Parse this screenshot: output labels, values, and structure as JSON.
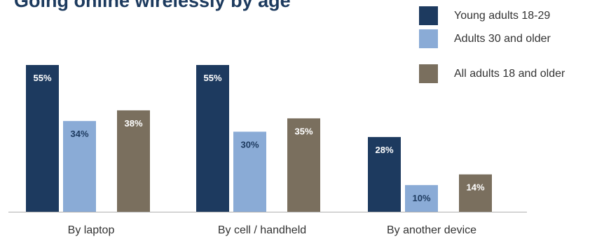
{
  "chart_data": {
    "type": "bar",
    "title": "Going online wirelessly by age",
    "categories": [
      "By laptop",
      "By cell / handheld",
      "By another device"
    ],
    "series": [
      {
        "name": "Young adults 18-29",
        "color": "#1d3a5f",
        "values": [
          55,
          55,
          28
        ]
      },
      {
        "name": "Adults 30 and older",
        "color": "#8aabd6",
        "values": [
          34,
          30,
          10
        ]
      },
      {
        "name": "All adults 18 and older",
        "color": "#7a6f5e",
        "values": [
          38,
          35,
          14
        ]
      }
    ],
    "value_suffix": "%",
    "ylim": [
      0,
      55
    ],
    "legend_position": "top-right",
    "grid": false
  }
}
